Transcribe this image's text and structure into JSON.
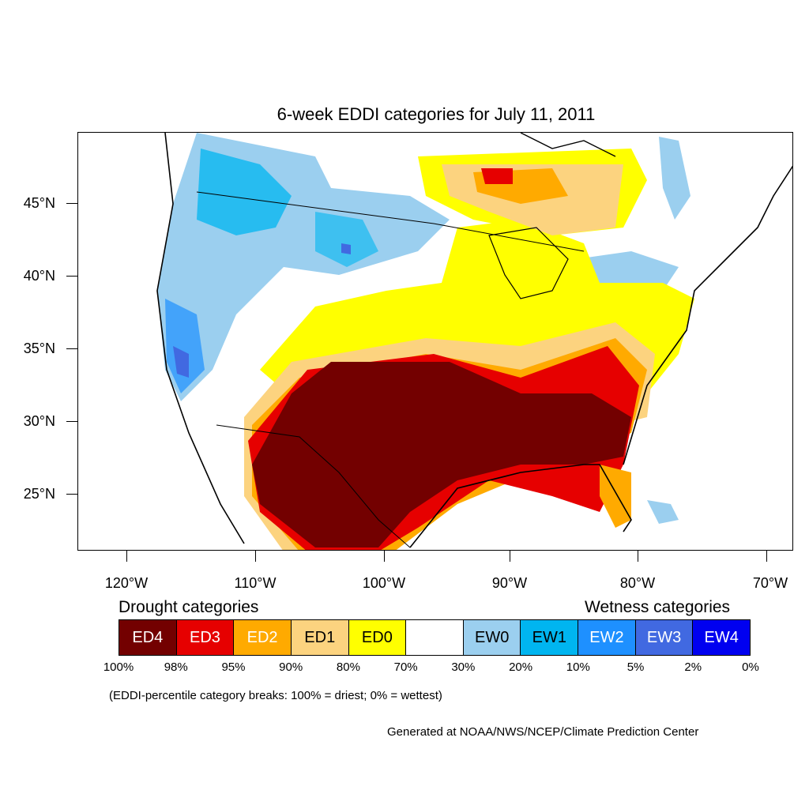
{
  "title": "6-week EDDI categories for July 11, 2011",
  "lat_labels": [
    "45°N",
    "40°N",
    "35°N",
    "30°N",
    "25°N"
  ],
  "lon_labels": [
    "120°W",
    "110°W",
    "100°W",
    "90°W",
    "80°W",
    "70°W"
  ],
  "legend": {
    "drought_heading": "Drought categories",
    "wetness_heading": "Wetness categories",
    "categories": [
      {
        "label": "ED4",
        "color": "#730000",
        "text_color": "#ffffff"
      },
      {
        "label": "ED3",
        "color": "#e60000",
        "text_color": "#ffffff"
      },
      {
        "label": "ED2",
        "color": "#ffaa00",
        "text_color": "#ffffff"
      },
      {
        "label": "ED1",
        "color": "#fcd37f",
        "text_color": "#000000"
      },
      {
        "label": "ED0",
        "color": "#ffff00",
        "text_color": "#000000"
      },
      {
        "label": "",
        "color": "#ffffff",
        "text_color": "#000000"
      },
      {
        "label": "EW0",
        "color": "#9bcfef",
        "text_color": "#000000"
      },
      {
        "label": "EW1",
        "color": "#00b5f0",
        "text_color": "#000000"
      },
      {
        "label": "EW2",
        "color": "#1e90ff",
        "text_color": "#ffffff"
      },
      {
        "label": "EW3",
        "color": "#4169e1",
        "text_color": "#ffffff"
      },
      {
        "label": "EW4",
        "color": "#0000f0",
        "text_color": "#ffffff"
      }
    ],
    "breaks": [
      "100%",
      "98%",
      "95%",
      "90%",
      "80%",
      "70%",
      "30%",
      "20%",
      "10%",
      "5%",
      "2%",
      "0%"
    ]
  },
  "note": "(EDDI-percentile category breaks: 100% = driest; 0% = wettest)",
  "credit": "Generated at NOAA/NWS/NCEP/Climate Prediction Center"
}
